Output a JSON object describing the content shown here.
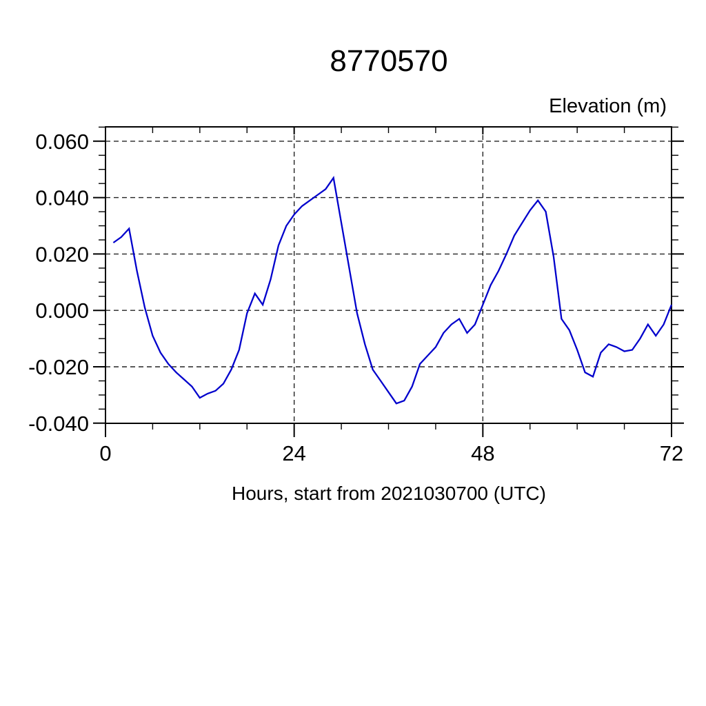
{
  "chart_data": {
    "type": "line",
    "title": "8770570",
    "ylabel": "Elevation (m)",
    "xlabel": "Hours, start from 2021030700 (UTC)",
    "xlim": [
      0,
      72
    ],
    "ylim": [
      -0.04,
      0.065
    ],
    "xticks": {
      "major": [
        {
          "v": 0,
          "label": "0"
        },
        {
          "v": 24,
          "label": "24"
        },
        {
          "v": 48,
          "label": "48"
        },
        {
          "v": 72,
          "label": "72"
        }
      ],
      "minor_step": 6
    },
    "yticks": {
      "major": [
        {
          "v": 0.06,
          "label": "0.060"
        },
        {
          "v": 0.04,
          "label": "0.040"
        },
        {
          "v": 0.02,
          "label": "0.020"
        },
        {
          "v": 0.0,
          "label": "0.000"
        },
        {
          "v": -0.02,
          "label": "-0.020"
        },
        {
          "v": -0.04,
          "label": "-0.040"
        }
      ],
      "minor_step": 0.005
    },
    "grid": {
      "x_values": [
        24,
        48
      ],
      "y_values": [
        0.06,
        0.04,
        0.02,
        0.0,
        -0.02,
        -0.04
      ],
      "style": "dashed"
    },
    "line_color": "#0000cc",
    "axis_color": "#000000",
    "grid_color": "#222222",
    "series": [
      {
        "name": "elevation",
        "x": [
          1,
          2,
          3,
          4,
          5,
          6,
          7,
          8,
          9,
          10,
          11,
          12,
          13,
          14,
          15,
          16,
          17,
          18,
          19,
          20,
          21,
          22,
          23,
          24,
          25,
          26,
          27,
          28,
          29,
          30,
          31,
          32,
          33,
          34,
          35,
          36,
          37,
          38,
          39,
          40,
          41,
          42,
          43,
          44,
          45,
          46,
          47,
          48,
          49,
          50,
          51,
          52,
          53,
          54,
          55,
          56,
          57,
          58,
          59,
          60,
          61,
          62,
          63,
          64,
          65,
          66,
          67,
          68,
          69,
          70,
          71,
          72
        ],
        "y": [
          0.024,
          0.026,
          0.029,
          0.014,
          0.001,
          -0.009,
          -0.015,
          -0.019,
          -0.022,
          -0.0245,
          -0.027,
          -0.031,
          -0.0295,
          -0.0285,
          -0.026,
          -0.021,
          -0.014,
          -0.001,
          0.006,
          0.002,
          0.011,
          0.023,
          0.03,
          0.034,
          0.037,
          0.039,
          0.041,
          0.043,
          0.047,
          0.031,
          0.015,
          -0.001,
          -0.012,
          -0.021,
          -0.025,
          -0.029,
          -0.033,
          -0.032,
          -0.027,
          -0.019,
          -0.016,
          -0.013,
          -0.008,
          -0.005,
          -0.003,
          -0.008,
          -0.005,
          0.002,
          0.009,
          0.014,
          0.02,
          0.0265,
          0.031,
          0.0355,
          0.039,
          0.035,
          0.019,
          -0.003,
          -0.007,
          -0.014,
          -0.022,
          -0.0235,
          -0.015,
          -0.012,
          -0.013,
          -0.0145,
          -0.014,
          -0.01,
          -0.005,
          -0.009,
          -0.005,
          0.002
        ]
      }
    ]
  }
}
